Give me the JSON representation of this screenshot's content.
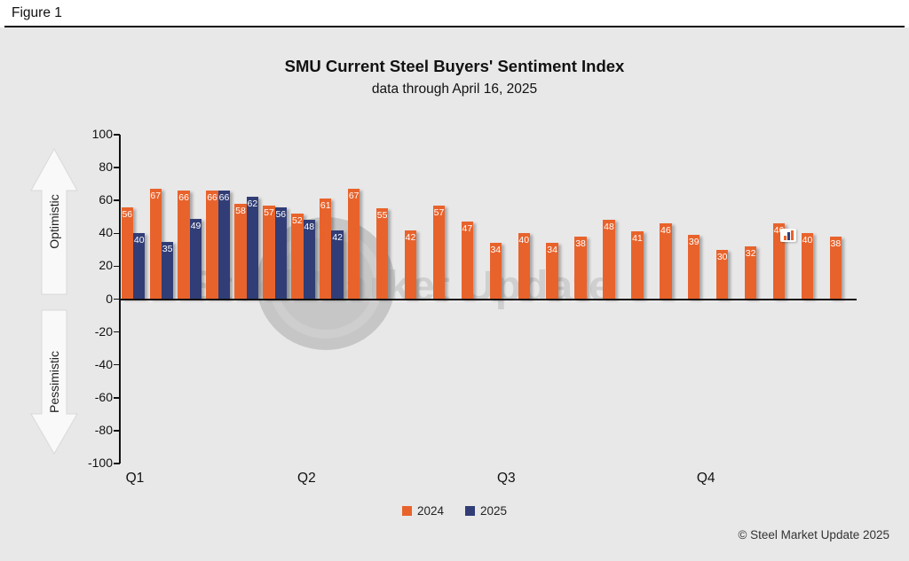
{
  "figure_label": "Figure 1",
  "title": "SMU Current Steel Buyers' Sentiment Index",
  "subtitle": "data through April 16, 2025",
  "side_labels": {
    "optimistic": "Optimistic",
    "pessimistic": "Pessimistic"
  },
  "watermark": "Steel Market Update",
  "footer": "© Steel Market Update 2025",
  "colors": {
    "orange_2024": "#E8632C",
    "navy_2025": "#303D76",
    "background": "#e9e8e8"
  },
  "chart_data": {
    "type": "bar",
    "title": "SMU Current Steel Buyers' Sentiment Index",
    "subtitle": "data through April 16, 2025",
    "x_axis_labels": [
      "Q1",
      "Q2",
      "Q3",
      "Q4"
    ],
    "ylim": [
      -100,
      100
    ],
    "yticks": [
      100,
      80,
      60,
      40,
      20,
      0,
      -20,
      -40,
      -60,
      -80,
      -100
    ],
    "grid": false,
    "legend_position": "bottom",
    "series": [
      {
        "name": "2024",
        "color": "#E8632C",
        "values": [
          56,
          67,
          66,
          66,
          58,
          57,
          52,
          61,
          67,
          55,
          42,
          57,
          47,
          34,
          40,
          34,
          38,
          48,
          41,
          46,
          39,
          30,
          32,
          46,
          40,
          38
        ]
      },
      {
        "name": "2025",
        "color": "#303D76",
        "values": [
          40,
          35,
          49,
          66,
          62,
          56,
          48,
          42
        ]
      }
    ]
  }
}
